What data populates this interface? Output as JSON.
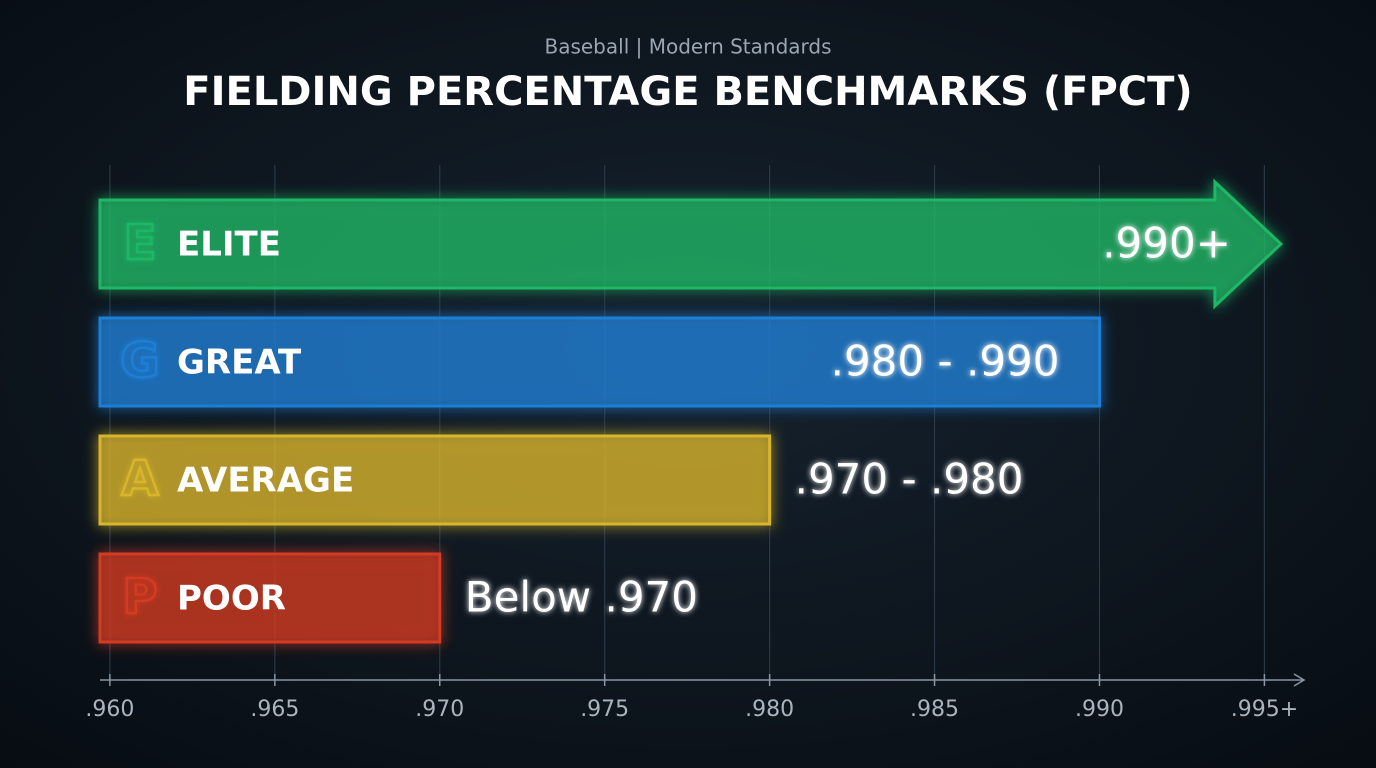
{
  "chart_data": {
    "type": "bar",
    "orientation": "horizontal",
    "subtitle": "Baseball | Modern Standards",
    "title": "FIELDING PERCENTAGE BENCHMARKS (FPCT)",
    "categories": [
      "ELITE",
      "GREAT",
      "AVERAGE",
      "POOR"
    ],
    "badges": [
      "E",
      "G",
      "A",
      "P"
    ],
    "values": [
      0.9955,
      0.99,
      0.98,
      0.97
    ],
    "value_labels": [
      ".990+",
      ".980 - .990",
      ".970 - .980",
      "Below .970"
    ],
    "colors": [
      "#1fb866",
      "#1f7fd6",
      "#d8b52a",
      "#d33a22"
    ],
    "xlim": [
      0.9597,
      0.9962
    ],
    "xticks": [
      {
        "value": 0.96,
        "label": ".960"
      },
      {
        "value": 0.965,
        "label": ".965"
      },
      {
        "value": 0.97,
        "label": ".970"
      },
      {
        "value": 0.975,
        "label": ".975"
      },
      {
        "value": 0.98,
        "label": ".980"
      },
      {
        "value": 0.985,
        "label": ".985"
      },
      {
        "value": 0.99,
        "label": ".990"
      },
      {
        "value": 0.995,
        "label": ".995+"
      }
    ],
    "grid": true
  }
}
